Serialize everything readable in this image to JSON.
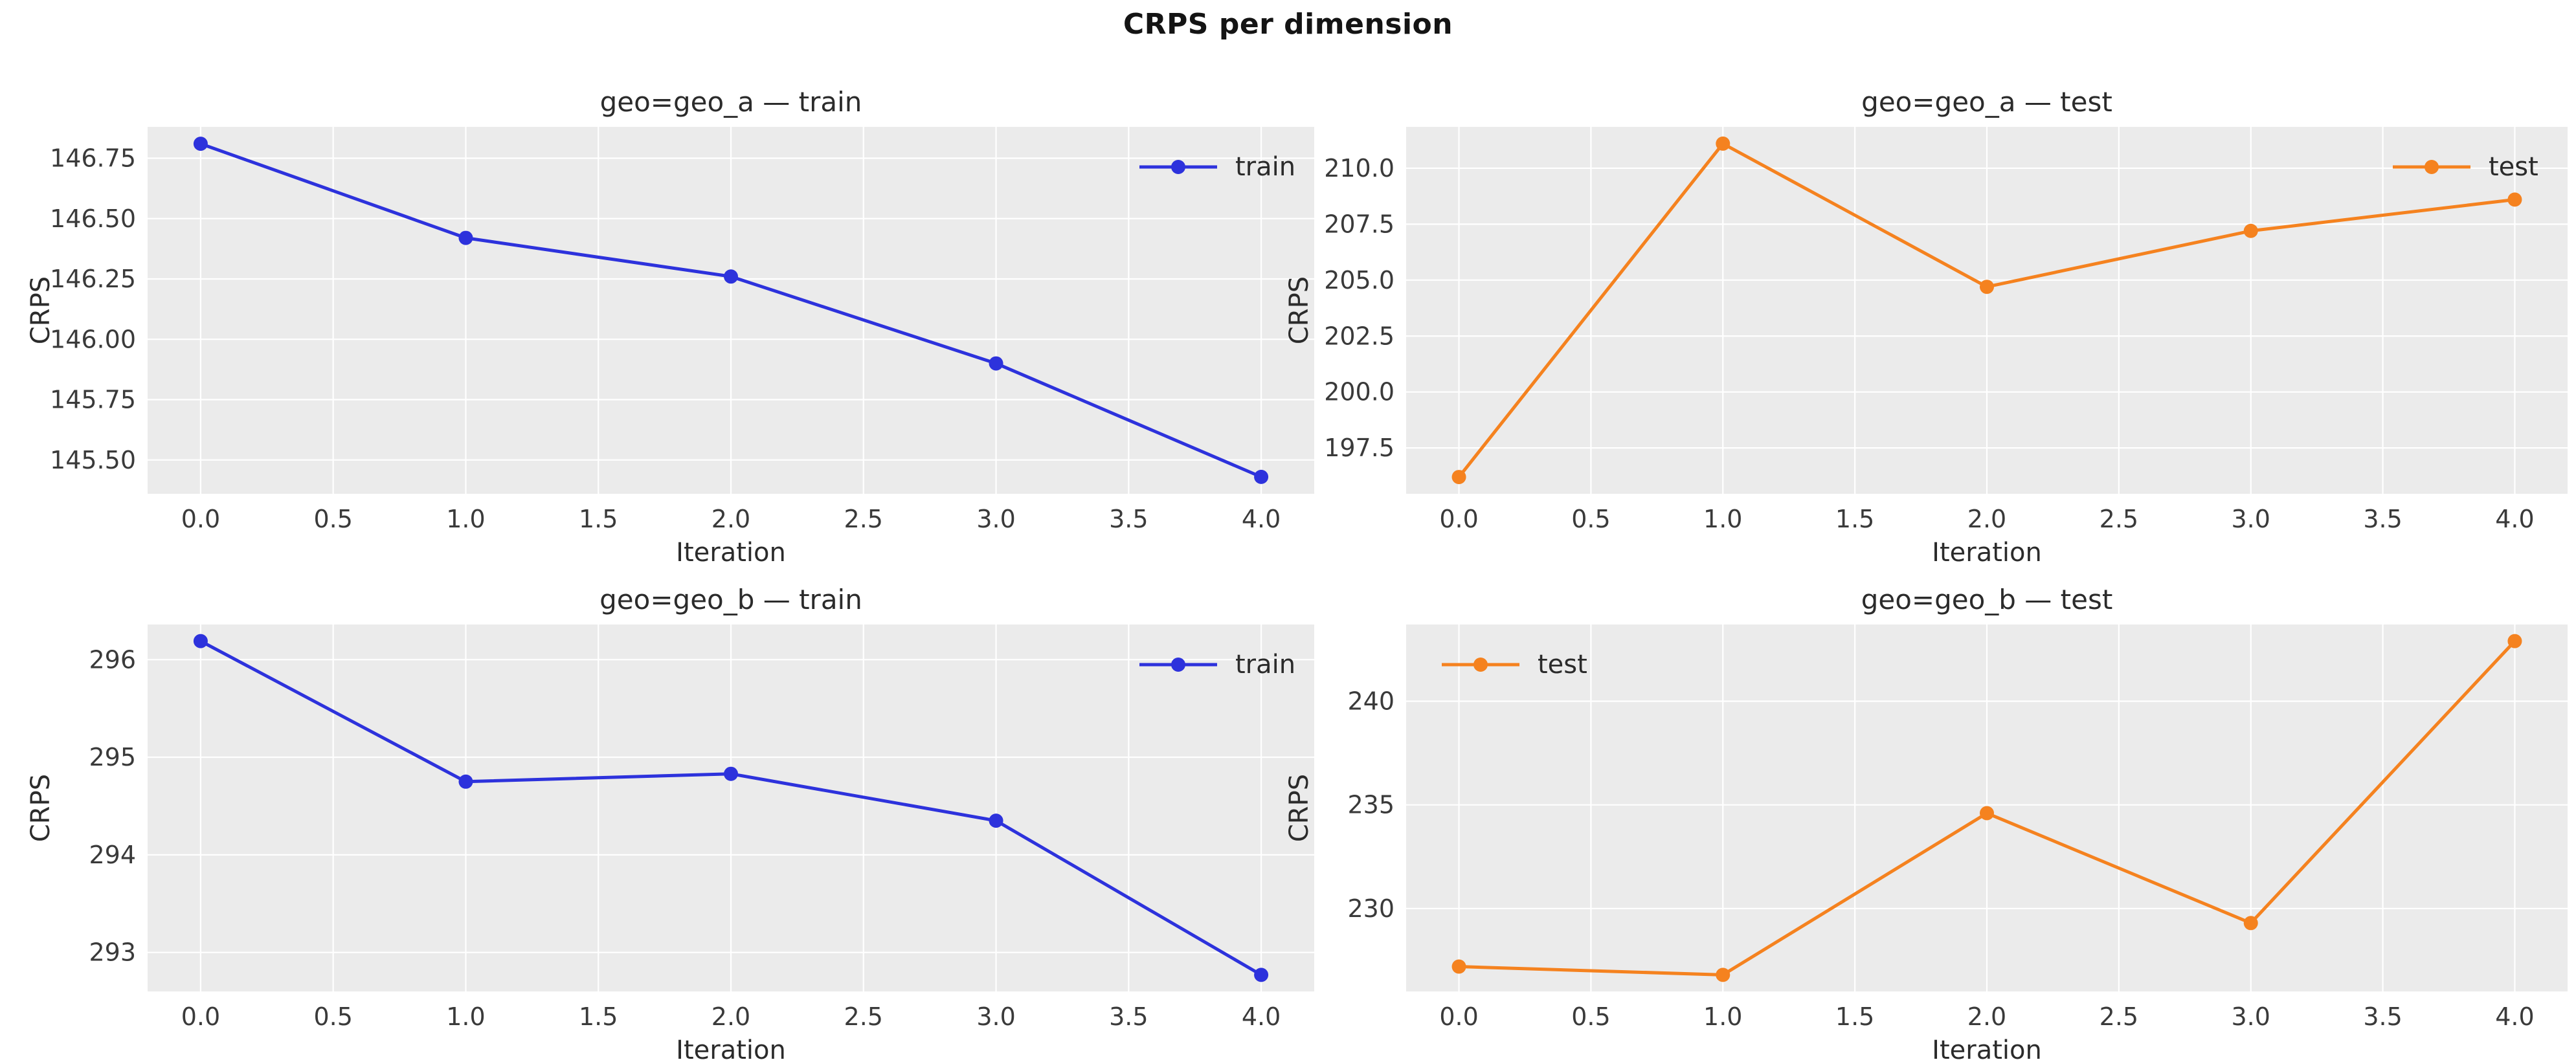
{
  "figure": {
    "suptitle": "CRPS per dimension",
    "background": "#ffffff",
    "axes_background": "#ebebeb",
    "gridline_color": "#ffffff",
    "tick_label_color": "#3a3a3a",
    "title_color": "#2b2b2b",
    "series_colors": {
      "train": "#2d32dc",
      "test": "#f5821f"
    }
  },
  "chart_data": [
    {
      "type": "line",
      "title": "geo=geo_a — train",
      "xlabel": "Iteration",
      "ylabel": "CRPS",
      "x": [
        0,
        1,
        2,
        3,
        4
      ],
      "series": [
        {
          "name": "train",
          "values": [
            146.81,
            146.42,
            146.26,
            145.9,
            145.43
          ]
        }
      ],
      "color": "#2d32dc",
      "legend_position": "upper right",
      "legend_label": "train",
      "xlim": [
        -0.2,
        4.2
      ],
      "ylim": [
        145.36,
        146.88
      ],
      "xticks": [
        0,
        0.5,
        1,
        1.5,
        2,
        2.5,
        3,
        3.5,
        4
      ],
      "xtick_labels": [
        "0.0",
        "0.5",
        "1.0",
        "1.5",
        "2.0",
        "2.5",
        "3.0",
        "3.5",
        "4.0"
      ],
      "yticks": [
        145.5,
        145.75,
        146.0,
        146.25,
        146.5,
        146.75
      ],
      "ytick_labels": [
        "145.50",
        "145.75",
        "146.00",
        "146.25",
        "146.50",
        "146.75"
      ],
      "grid": true
    },
    {
      "type": "line",
      "title": "geo=geo_a — test",
      "xlabel": "Iteration",
      "ylabel": "CRPS",
      "x": [
        0,
        1,
        2,
        3,
        4
      ],
      "series": [
        {
          "name": "test",
          "values": [
            196.2,
            211.1,
            204.7,
            207.2,
            208.6
          ]
        }
      ],
      "color": "#f5821f",
      "legend_position": "upper right",
      "legend_label": "test",
      "xlim": [
        -0.2,
        4.2
      ],
      "ylim": [
        195.45,
        211.85
      ],
      "xticks": [
        0,
        0.5,
        1,
        1.5,
        2,
        2.5,
        3,
        3.5,
        4
      ],
      "xtick_labels": [
        "0.0",
        "0.5",
        "1.0",
        "1.5",
        "2.0",
        "2.5",
        "3.0",
        "3.5",
        "4.0"
      ],
      "yticks": [
        197.5,
        200.0,
        202.5,
        205.0,
        207.5,
        210.0
      ],
      "ytick_labels": [
        "197.5",
        "200.0",
        "202.5",
        "205.0",
        "207.5",
        "210.0"
      ],
      "grid": true
    },
    {
      "type": "line",
      "title": "geo=geo_b — train",
      "xlabel": "Iteration",
      "ylabel": "CRPS",
      "x": [
        0,
        1,
        2,
        3,
        4
      ],
      "series": [
        {
          "name": "train",
          "values": [
            296.19,
            294.75,
            294.83,
            294.35,
            292.77
          ]
        }
      ],
      "color": "#2d32dc",
      "legend_position": "upper right",
      "legend_label": "train",
      "xlim": [
        -0.2,
        4.2
      ],
      "ylim": [
        292.6,
        296.36
      ],
      "xticks": [
        0,
        0.5,
        1,
        1.5,
        2,
        2.5,
        3,
        3.5,
        4
      ],
      "xtick_labels": [
        "0.0",
        "0.5",
        "1.0",
        "1.5",
        "2.0",
        "2.5",
        "3.0",
        "3.5",
        "4.0"
      ],
      "yticks": [
        293,
        294,
        295,
        296
      ],
      "ytick_labels": [
        "293",
        "294",
        "295",
        "296"
      ],
      "grid": true
    },
    {
      "type": "line",
      "title": "geo=geo_b — test",
      "xlabel": "Iteration",
      "ylabel": "CRPS",
      "x": [
        0,
        1,
        2,
        3,
        4
      ],
      "series": [
        {
          "name": "test",
          "values": [
            227.2,
            226.8,
            234.6,
            229.3,
            242.9
          ]
        }
      ],
      "color": "#f5821f",
      "legend_position": "upper left",
      "legend_label": "test",
      "xlim": [
        -0.2,
        4.2
      ],
      "ylim": [
        226.0,
        243.7
      ],
      "xticks": [
        0,
        0.5,
        1,
        1.5,
        2,
        2.5,
        3,
        3.5,
        4
      ],
      "xtick_labels": [
        "0.0",
        "0.5",
        "1.0",
        "1.5",
        "2.0",
        "2.5",
        "3.0",
        "3.5",
        "4.0"
      ],
      "yticks": [
        230,
        235,
        240
      ],
      "ytick_labels": [
        "230",
        "235",
        "240"
      ],
      "grid": true
    }
  ]
}
